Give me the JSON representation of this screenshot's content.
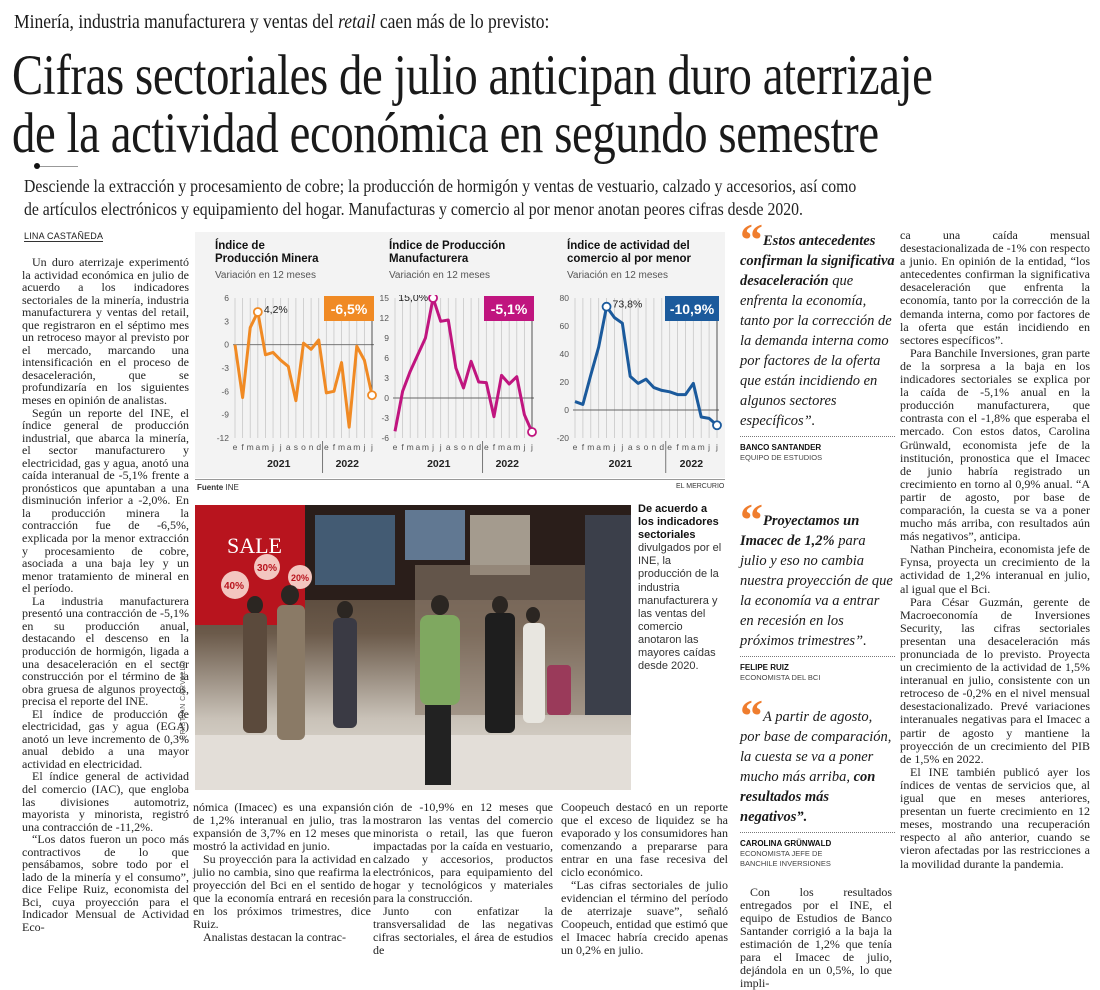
{
  "header": {
    "kicker_pre": "Minería, industria manufacturera y ventas del ",
    "kicker_italic": "retail",
    "kicker_post": " caen más de lo previsto:",
    "title_line1": "Cifras sectoriales de julio anticipan duro aterrizaje",
    "title_line2": "de la actividad económica en segundo semestre",
    "deck_line1": "Desciende la extracción y procesamiento de cobre; la producción de hormigón y ventas de vestuario, calzado y accesorios, así como",
    "deck_line2": "de artículos electrónicos y equipamiento del hogar. Manufacturas y comercio al por menor anotan peores cifras desde 2020.",
    "byline": "LINA CASTAÑEDA"
  },
  "columns": {
    "col1": [
      "Un duro aterrizaje experimentó la actividad económica en julio de acuerdo a los indicadores sectoriales de la minería, industria manufacturera y ventas del retail, que registraron en el séptimo mes un retroceso mayor al previsto por el mercado, marcando una intensificación en el proceso de desaceleración, que se profundizaría en los siguientes meses en opinión de analistas.",
      "Según un reporte del INE, el índice general de producción industrial, que abarca la minería, el sector manufacturero y electricidad, gas y agua, anotó una caída interanual de -5,1% frente a pronósticos que apuntaban a una disminución inferior a -2,0%. En la producción minera la contracción fue de -6,5%, explicada por la menor extracción y procesamiento de cobre, asociada a una baja ley y un menor tratamiento de mineral en el período.",
      "La industria manufacturera presentó una contracción de -5,1% en su producción anual, destacando el descenso en la producción de hormigón, ligada a una desaceleración en el sector construcción por el término de la obra gruesa de algunos proyectos, precisa el reporte del INE.",
      "El índice de producción de electricidad, gas y agua (EGA) anotó un leve incremento de 0,3% anual debido a una mayor actividad en electricidad.",
      "El índice general de actividad del comercio (IAC), que engloba las divisiones automotriz, mayorista y minorista, registró una contracción de -11,2%.",
      "“Los datos fueron un poco más contractivos de lo que pensábamos, sobre todo por el lado de la minería y el consumo”, dice Felipe Ruiz, economista del Bci, cuya proyección para el Indicador Mensual de Actividad Eco-"
    ],
    "col2": [
      "nómica (Imacec) es una expansión de 1,2% interanual en julio, tras la expansión de 3,7% en 12 meses que mostró la actividad en junio.",
      "Su proyección para la actividad en julio no cambia, sino que reafirma la proyección del Bci en el sentido de que la economía entrará en recesión en los próximos trimestres, dice Ruiz.",
      "Analistas destacan la contrac-"
    ],
    "col3": [
      "ción de -10,9% en 12 meses que mostraron las ventas del comercio minorista o retail, las que fueron impactadas por la caída en vestuario, calzado y accesorios, productos electrónicos, para equipamiento del hogar y tecnológicos y materiales para la construcción.",
      "Junto con enfatizar la transversalidad de las negativas cifras sectoriales, el área de estudios de"
    ],
    "col4": [
      "Coopeuch destacó en un reporte que el exceso de liquidez se ha evaporado y los consumidores han comenzando a prepararse para entrar en una fase recesiva del ciclo económico.",
      "“Las cifras sectoriales de julio evidencian el término del período de aterrizaje suave”, señaló Coopeuch, entidad que estimó que el Imacec habría crecido apenas un 0,2% en julio."
    ],
    "col5": [
      "Con los resultados entregados por el INE, el equipo de Estudios de Banco Santander corrigió a la baja la estimación de 1,2% que tenía para el Imacec de julio, dejándola en un 0,5%, lo que impli-"
    ],
    "col6": [
      "ca una caída mensual desestacionalizada de -1% con respecto a junio. En opinión de la entidad, “los antecedentes confirman la significativa desaceleración que enfrenta la economía, tanto por la corrección de la demanda interna, como por factores de la oferta que están incidiendo en sectores específicos”.",
      "Para Banchile Inversiones, gran parte de la sorpresa a la baja en los indicadores sectoriales se explica por la caída de -5,1% anual en la producción manufacturera, que contrasta con el -1,8% que esperaba el mercado. Con estos datos, Carolina Grünwald, economista jefe de la institución, pronostica que el Imacec de junio habría registrado un crecimiento en torno al 0,9% anual. “A partir de agosto, por base de comparación, la cuesta se va a poner mucho más arriba, con resultados aún más negativos”, anticipa.",
      "Nathan Pincheira, economista jefe de Fynsa, proyecta un crecimiento de la actividad de 1,2% interanual en julio, al igual que el Bci.",
      "Para César Guzmán, gerente de Macroeconomía de Inversiones Security, las cifras sectoriales presentan una desaceleración más pronunciada de lo previsto. Proyecta un crecimiento de la actividad de 1,5% interanual en julio, consistente con un retroceso de -0,2% en el nivel mensual desestacionalizado. Prevé variaciones interanuales negativas para el Imacec a partir de agosto y mantiene la proyección de un crecimiento del PIB de 1,5% en 2022.",
      "El INE también publicó ayer los índices de ventas de servicios que, al igual que en meses anteriores, presentan un fuerte crecimiento en 12 meses, mostrando una recuperación respecto al año anterior, cuando se vieron afectadas por las restricciones a la movilidad durante la pandemia."
    ]
  },
  "quotes": [
    {
      "bold_pre": "Estos antecedentes confirman la significativa desaceleración",
      "text": " que enfrenta la economía, tanto por la corrección de la demanda interna como por factores de la oferta que están incidiendo en algunos sectores específicos”.",
      "bold_post": "",
      "name": "BANCO SANTANDER",
      "role": "EQUIPO DE ESTUDIOS"
    },
    {
      "bold_pre": "Proyectamos un Imacec de 1,2%",
      "text": " para julio y eso no cambia nuestra proyección de que la economía va a entrar en recesión en los próximos trimestres”.",
      "bold_post": "",
      "name": "FELIPE RUIZ",
      "role": "ECONOMISTA DEL BCI"
    },
    {
      "bold_pre": "",
      "text": "A partir de agosto, por base de comparación, la cuesta se va a poner mucho más arriba, ",
      "bold_post": "con resultados más negativos”.",
      "name": "CAROLINA GRÜNWALD",
      "role": "ECONOMISTA JEFE DE BANCHILE INVERSIONES"
    }
  ],
  "quote_color": "#ef7d2e",
  "photo": {
    "sign_text": "SALE",
    "discounts": [
      "30%",
      "40%",
      "20%"
    ],
    "credit": "CRISTIAN CARVALLO",
    "caption_bold": "De acuerdo a los indicadores sectoriales",
    "caption_text": " divulgados por el INE, la producción de la industria manufacturera y las ventas del comercio anotaron las mayores caídas desde 2020."
  },
  "chart_source": {
    "label": "Fuente",
    "value": "INE",
    "publisher": "EL MERCURIO"
  },
  "chart_data": [
    {
      "type": "line",
      "title": "Índice de Producción Minera",
      "subtitle": "Variación en 12 meses",
      "color": "#f08a24",
      "badge": "-6,5%",
      "peak_label": "4,2%",
      "x": [
        "e",
        "f",
        "m",
        "a",
        "m",
        "j",
        "j",
        "a",
        "s",
        "o",
        "n",
        "d",
        "e",
        "f",
        "m",
        "a",
        "m",
        "j",
        "j"
      ],
      "years": [
        "2021",
        "2022"
      ],
      "values": [
        0,
        -6.8,
        2.2,
        4.2,
        -1.3,
        -1.0,
        -2.0,
        -2.8,
        -7.2,
        0.2,
        -0.6,
        0.6,
        -6.2,
        -6.0,
        -2.3,
        -10.6,
        -0.2,
        -2.0,
        -6.5
      ],
      "yticks": [
        6,
        3,
        0,
        -3,
        -6,
        -9,
        -12
      ],
      "ylim": [
        -12,
        6
      ]
    },
    {
      "type": "line",
      "title": "Índice de Producción Manufacturera",
      "subtitle": "Variación en 12 meses",
      "color": "#c0157f",
      "badge": "-5,1%",
      "peak_label": "15,0%",
      "x": [
        "e",
        "f",
        "m",
        "a",
        "m",
        "j",
        "j",
        "a",
        "s",
        "o",
        "n",
        "d",
        "e",
        "f",
        "m",
        "a",
        "m",
        "j",
        "j"
      ],
      "years": [
        "2021",
        "2022"
      ],
      "values": [
        -5.0,
        1.0,
        4.0,
        6.5,
        9.0,
        15.0,
        11.5,
        11.7,
        4.5,
        1.5,
        5.5,
        2.4,
        2.3,
        -2.8,
        3.4,
        2.1,
        3.2,
        -2.5,
        -5.1
      ],
      "yticks": [
        15,
        12,
        9,
        6,
        3,
        0,
        -3,
        -6
      ],
      "ylim": [
        -6,
        15
      ]
    },
    {
      "type": "line",
      "title": "Índice de actividad del comercio al por menor",
      "subtitle": "Variación en 12 meses",
      "color": "#1b5a9c",
      "badge": "-10,9%",
      "peak_label": "73,8%",
      "x": [
        "e",
        "f",
        "m",
        "a",
        "m",
        "j",
        "j",
        "a",
        "s",
        "o",
        "n",
        "d",
        "e",
        "f",
        "m",
        "a",
        "m",
        "j",
        "j"
      ],
      "years": [
        "2021",
        "2022"
      ],
      "values": [
        6,
        4,
        25,
        45,
        73.8,
        66,
        62,
        24,
        19,
        22,
        16,
        14,
        13,
        11,
        11,
        19,
        -5,
        -6,
        -10.9
      ],
      "yticks": [
        80,
        60,
        40,
        20,
        0,
        -20
      ],
      "ylim": [
        -20,
        80
      ]
    }
  ]
}
